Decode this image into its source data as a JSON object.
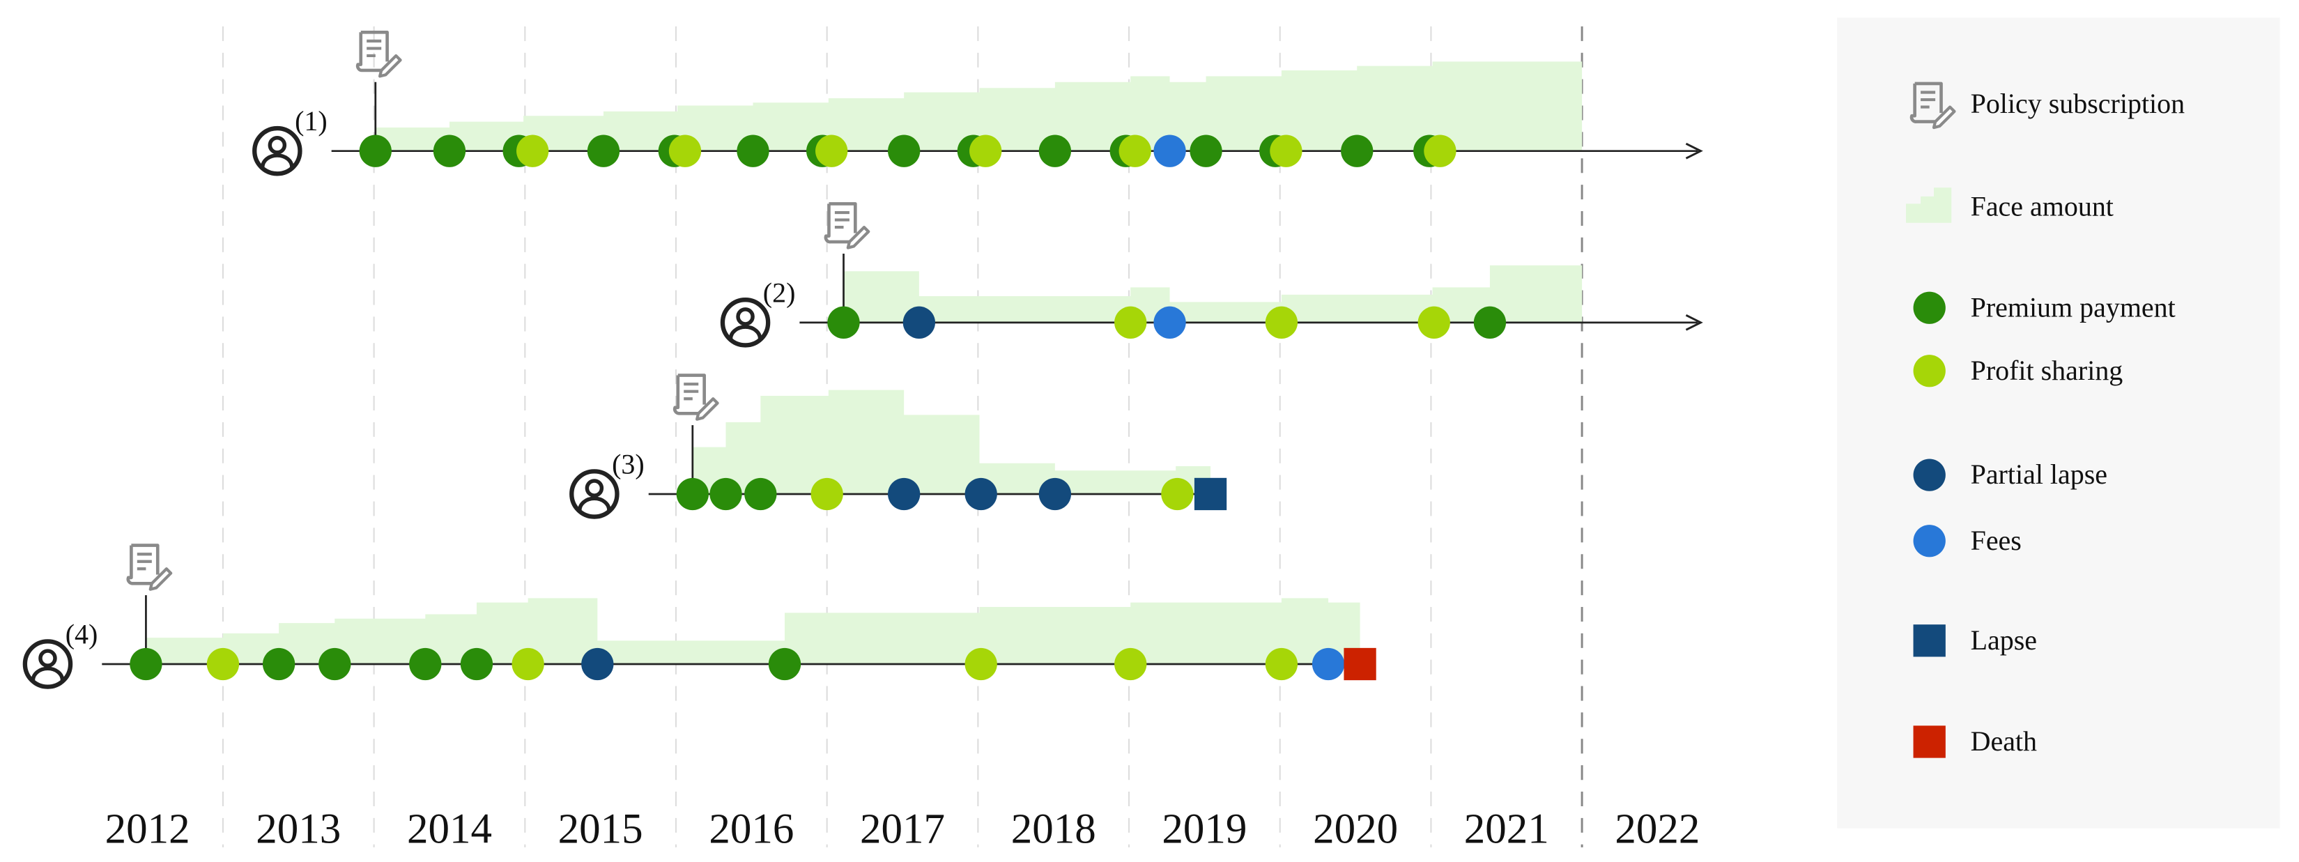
{
  "years": [
    2012,
    2013,
    2014,
    2015,
    2016,
    2017,
    2018,
    2019,
    2020,
    2021,
    2022
  ],
  "legend": {
    "items": [
      {
        "name": "Policy subscription",
        "shape": "document",
        "color": "#8a8a8a"
      },
      {
        "name": "Face amount",
        "shape": "area",
        "color": "#e2f7da"
      },
      {
        "name": "Premium payment",
        "shape": "circle",
        "color": "#2a8c0a"
      },
      {
        "name": "Profit sharing",
        "shape": "circle",
        "color": "#a6d608"
      },
      {
        "name": "Partial lapse",
        "shape": "circle",
        "color": "#134a7c"
      },
      {
        "name": "Fees",
        "shape": "circle",
        "color": "#2878d8"
      },
      {
        "name": "Lapse",
        "shape": "square",
        "color": "#134a7c"
      },
      {
        "name": "Death",
        "shape": "square",
        "color": "#cc2200"
      }
    ]
  },
  "timelines": [
    {
      "label": "(1)",
      "subscription": 2014.01,
      "face_amount": {
        "breaks": [
          2014.01,
          2014.5,
          2014.99,
          2015.52,
          2016.01,
          2016.51,
          2017.01,
          2017.51,
          2018.01,
          2018.51,
          2019.01,
          2019.27,
          2019.51,
          2020.01,
          2020.51,
          2021.01,
          2022.0
        ],
        "values": [
          16,
          20,
          24,
          27,
          31,
          33,
          36,
          40,
          43,
          47,
          51,
          47,
          51,
          55,
          58,
          61
        ]
      },
      "events": {
        "Premium payment": [
          2014.01,
          2014.5,
          2014.96,
          2015.52,
          2015.99,
          2016.51,
          2016.97,
          2017.51,
          2017.97,
          2018.51,
          2018.98,
          2019.51,
          2019.97,
          2020.51,
          2020.99
        ],
        "Profit sharing": [
          2015.05,
          2016.06,
          2017.03,
          2018.05,
          2019.04,
          2020.04,
          2021.06
        ],
        "Fees": [
          2019.27
        ]
      }
    },
    {
      "label": "(2)",
      "subscription": 2017.11,
      "face_amount": {
        "breaks": [
          2017.11,
          2017.61,
          2019.01,
          2019.27,
          2020.01,
          2021.01,
          2021.39,
          2022.0
        ],
        "values": [
          35,
          18,
          24,
          14,
          19,
          24,
          39
        ]
      },
      "events": {
        "Premium payment": [
          2017.11,
          2021.39
        ],
        "Profit sharing": [
          2019.01,
          2020.01,
          2021.02
        ],
        "Partial lapse": [
          2017.61
        ],
        "Fees": [
          2019.27
        ]
      }
    },
    {
      "label": "(3)",
      "subscription": 2016.11,
      "face_amount": {
        "breaks": [
          2016.11,
          2016.33,
          2016.56,
          2017.01,
          2017.51,
          2018.01,
          2018.51,
          2019.31,
          2019.54
        ],
        "values": [
          32,
          49,
          67,
          71,
          54,
          21,
          16,
          19
        ]
      },
      "events": {
        "Premium payment": [
          2016.11,
          2016.33,
          2016.56
        ],
        "Profit sharing": [
          2017.0,
          2019.32
        ],
        "Partial lapse": [
          2017.51,
          2018.02,
          2018.51
        ],
        "Lapse": [
          2019.54
        ]
      }
    },
    {
      "label": "(4)",
      "subscription": 2012.49,
      "face_amount": {
        "breaks": [
          2012.49,
          2013.0,
          2013.37,
          2013.74,
          2014.34,
          2014.68,
          2015.02,
          2015.48,
          2016.72,
          2018.01,
          2019.01,
          2020.01,
          2020.32,
          2020.53
        ],
        "values": [
          18,
          21,
          28,
          31,
          34,
          42,
          45,
          16,
          35,
          39,
          42,
          45,
          42
        ]
      },
      "events": {
        "Premium payment": [
          2012.49,
          2013.37,
          2013.74,
          2014.34,
          2014.68,
          2016.72
        ],
        "Profit sharing": [
          2013.0,
          2015.02,
          2018.02,
          2019.01,
          2020.01
        ],
        "Partial lapse": [
          2015.48
        ],
        "Fees": [
          2020.32
        ],
        "Death": [
          2020.53
        ]
      }
    }
  ]
}
